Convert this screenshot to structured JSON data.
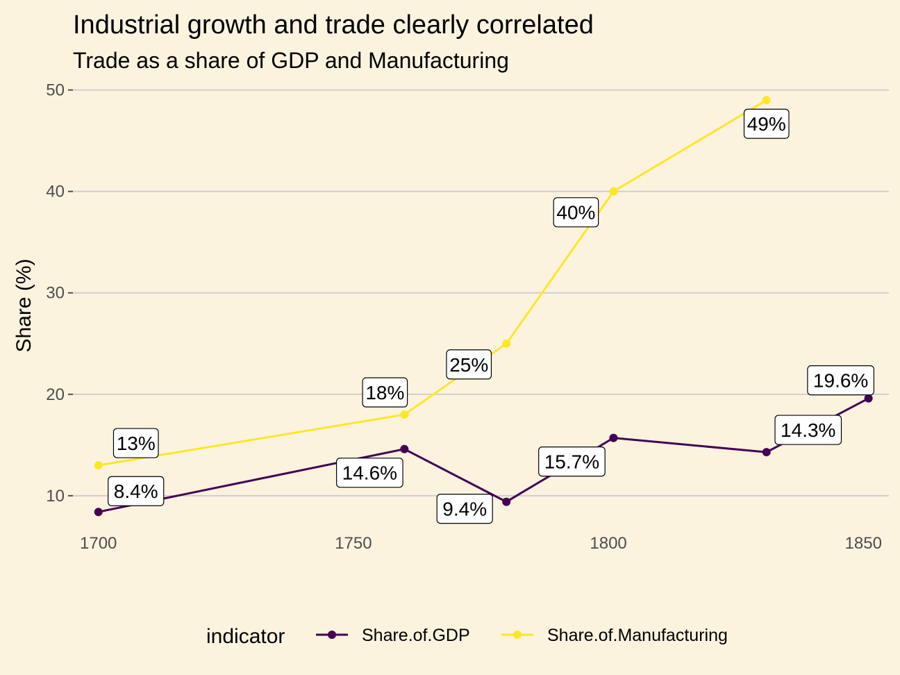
{
  "chart_data": {
    "type": "line",
    "title": "Industrial growth and trade clearly correlated",
    "subtitle": "Trade as a share of GDP and Manufacturing",
    "xlabel": "",
    "ylabel": "Share (%)",
    "xlim": [
      1695,
      1855
    ],
    "ylim": [
      6.5,
      51
    ],
    "x_ticks": [
      1700,
      1750,
      1800,
      1850
    ],
    "y_ticks": [
      10,
      20,
      30,
      40,
      50
    ],
    "grid": "horizontal major lines",
    "legend": {
      "title": "indicator",
      "placement": "bottom"
    },
    "series": [
      {
        "name": "Share.of.GDP",
        "color": "#440154",
        "points": [
          {
            "x": 1700,
            "y": 8.4,
            "label": "8.4%"
          },
          {
            "x": 1760,
            "y": 14.6,
            "label": "14.6%"
          },
          {
            "x": 1780,
            "y": 9.4,
            "label": "9.4%"
          },
          {
            "x": 1801,
            "y": 15.7,
            "label": "15.7%"
          },
          {
            "x": 1831,
            "y": 14.3,
            "label": "14.3%"
          },
          {
            "x": 1851,
            "y": 19.6,
            "label": "19.6%"
          }
        ]
      },
      {
        "name": "Share.of.Manufacturing",
        "color": "#fde725",
        "points": [
          {
            "x": 1700,
            "y": 13,
            "label": "13%"
          },
          {
            "x": 1760,
            "y": 18,
            "label": "18%"
          },
          {
            "x": 1780,
            "y": 25,
            "label": "25%"
          },
          {
            "x": 1801,
            "y": 40,
            "label": "40%"
          },
          {
            "x": 1831,
            "y": 49,
            "label": "49%"
          }
        ]
      }
    ]
  }
}
